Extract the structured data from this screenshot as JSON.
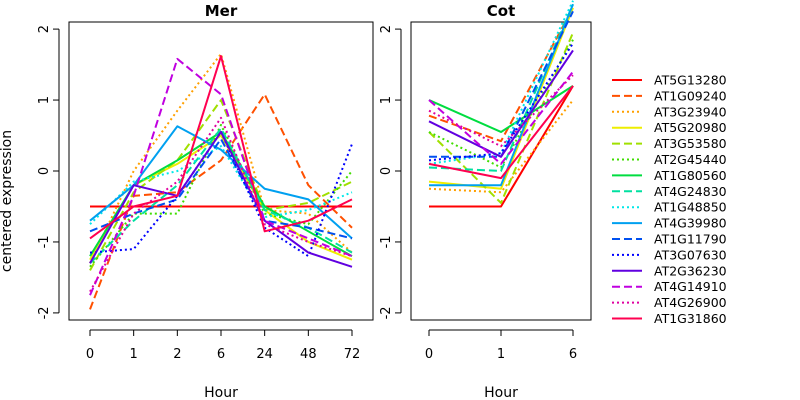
{
  "chart_data": [
    {
      "type": "line",
      "title": "Mer",
      "xlabel": "Hour",
      "ylabel": "centered expression",
      "categories": [
        "0",
        "1",
        "2",
        "6",
        "24",
        "48",
        "72"
      ],
      "ylim": [
        -2.1,
        2.1
      ],
      "yticks": [
        -2,
        -1,
        0,
        1,
        2
      ],
      "series": [
        {
          "name": "AT5G13280",
          "values": [
            -0.5,
            -0.5,
            -0.5,
            -0.5,
            -0.5,
            -0.5,
            -0.5
          ]
        },
        {
          "name": "AT1G09240",
          "values": [
            -1.95,
            -0.35,
            -0.3,
            0.15,
            1.08,
            -0.2,
            -0.8
          ]
        },
        {
          "name": "AT3G23940",
          "values": [
            -1.3,
            0.0,
            0.85,
            1.65,
            -0.55,
            -0.6,
            -1.15
          ]
        },
        {
          "name": "AT5G20980",
          "values": [
            -1.25,
            -0.2,
            0.1,
            0.5,
            -0.55,
            -1.0,
            -1.25
          ]
        },
        {
          "name": "AT3G53580",
          "values": [
            -1.4,
            -0.3,
            0.15,
            1.0,
            -0.55,
            -0.45,
            -0.15
          ]
        },
        {
          "name": "AT2G45440",
          "values": [
            -1.35,
            -0.6,
            -0.6,
            0.65,
            -0.6,
            -0.75,
            -0.0
          ]
        },
        {
          "name": "AT1G80560",
          "values": [
            -1.2,
            -0.2,
            0.15,
            0.55,
            -0.5,
            -0.85,
            -1.2
          ]
        },
        {
          "name": "AT4G24830",
          "values": [
            -1.3,
            -0.7,
            -0.2,
            0.6,
            -0.55,
            -0.8,
            -1.15
          ]
        },
        {
          "name": "AT1G48850",
          "values": [
            -0.75,
            -0.15,
            0.0,
            0.35,
            -0.65,
            -0.55,
            -0.3
          ]
        },
        {
          "name": "AT4G39980",
          "values": [
            -0.7,
            -0.2,
            0.63,
            0.3,
            -0.25,
            -0.4,
            -0.95
          ]
        },
        {
          "name": "AT1G11790",
          "values": [
            -0.85,
            -0.6,
            -0.4,
            0.45,
            -0.7,
            -0.8,
            -0.95
          ]
        },
        {
          "name": "AT3G07630",
          "values": [
            -1.15,
            -1.1,
            -0.35,
            0.55,
            -0.8,
            -1.2,
            0.38
          ]
        },
        {
          "name": "AT2G36230",
          "values": [
            -1.3,
            -0.2,
            -0.35,
            0.55,
            -0.7,
            -1.15,
            -1.35
          ]
        },
        {
          "name": "AT4G14910",
          "values": [
            -1.75,
            -0.35,
            1.58,
            1.08,
            -0.7,
            -0.95,
            -1.2
          ]
        },
        {
          "name": "AT4G26900",
          "values": [
            -1.7,
            -0.6,
            -0.15,
            0.75,
            -0.75,
            -1.0,
            -1.2
          ]
        },
        {
          "name": "AT1G31860",
          "values": [
            -0.95,
            -0.5,
            -0.35,
            1.62,
            -0.85,
            -0.7,
            -0.4
          ]
        }
      ]
    },
    {
      "type": "line",
      "title": "Cot",
      "xlabel": "Hour",
      "ylabel": "",
      "categories": [
        "0",
        "1",
        "6"
      ],
      "ylim": [
        -2.1,
        2.1
      ],
      "yticks": [
        -2,
        -1,
        0,
        1,
        2
      ],
      "series": [
        {
          "name": "AT5G13280",
          "values": [
            -0.5,
            -0.5,
            1.2
          ]
        },
        {
          "name": "AT1G09240",
          "values": [
            0.78,
            0.42,
            2.3
          ]
        },
        {
          "name": "AT3G23940",
          "values": [
            -0.25,
            -0.3,
            1.0
          ]
        },
        {
          "name": "AT5G20980",
          "values": [
            -0.15,
            -0.25,
            2.3
          ]
        },
        {
          "name": "AT3G53580",
          "values": [
            0.55,
            -0.45,
            1.95
          ]
        },
        {
          "name": "AT2G45440",
          "values": [
            0.55,
            0.05,
            1.85
          ]
        },
        {
          "name": "AT1G80560",
          "values": [
            1.0,
            0.55,
            1.2
          ]
        },
        {
          "name": "AT4G24830",
          "values": [
            0.05,
            0.0,
            2.35
          ]
        },
        {
          "name": "AT1G48850",
          "values": [
            0.1,
            0.25,
            2.4
          ]
        },
        {
          "name": "AT4G39980",
          "values": [
            -0.2,
            -0.2,
            2.35
          ]
        },
        {
          "name": "AT1G11790",
          "values": [
            0.2,
            0.2,
            2.25
          ]
        },
        {
          "name": "AT3G07630",
          "values": [
            0.15,
            0.25,
            1.8
          ]
        },
        {
          "name": "AT2G36230",
          "values": [
            0.7,
            0.2,
            1.7
          ]
        },
        {
          "name": "AT4G14910",
          "values": [
            1.0,
            0.1,
            1.4
          ]
        },
        {
          "name": "AT4G26900",
          "values": [
            0.85,
            0.35,
            1.35
          ]
        },
        {
          "name": "AT1G31860",
          "values": [
            0.1,
            -0.1,
            1.2
          ]
        }
      ]
    }
  ],
  "legend": {
    "placement": "right",
    "entries": [
      {
        "name": "AT5G13280",
        "color": "#FF0000",
        "dash": "solid"
      },
      {
        "name": "AT1G09240",
        "color": "#FF5000",
        "dash": "dashed"
      },
      {
        "name": "AT3G23940",
        "color": "#FFA000",
        "dash": "dotted"
      },
      {
        "name": "AT5G20980",
        "color": "#EEEE00",
        "dash": "solid"
      },
      {
        "name": "AT3G53580",
        "color": "#A0E000",
        "dash": "dashed"
      },
      {
        "name": "AT2G45440",
        "color": "#40DD00",
        "dash": "dotted"
      },
      {
        "name": "AT1G80560",
        "color": "#00DD40",
        "dash": "solid"
      },
      {
        "name": "AT4G24830",
        "color": "#00E0A0",
        "dash": "dashed"
      },
      {
        "name": "AT1G48850",
        "color": "#00E8E8",
        "dash": "dotted"
      },
      {
        "name": "AT4G39980",
        "color": "#00A0F0",
        "dash": "solid"
      },
      {
        "name": "AT1G11790",
        "color": "#0050F0",
        "dash": "dashed"
      },
      {
        "name": "AT3G07630",
        "color": "#0000FF",
        "dash": "dotted"
      },
      {
        "name": "AT2G36230",
        "color": "#6000E0",
        "dash": "solid"
      },
      {
        "name": "AT4G14910",
        "color": "#C000E0",
        "dash": "dashed"
      },
      {
        "name": "AT4G26900",
        "color": "#E000A0",
        "dash": "dotted"
      },
      {
        "name": "AT1G31860",
        "color": "#FF0050",
        "dash": "solid"
      }
    ]
  }
}
